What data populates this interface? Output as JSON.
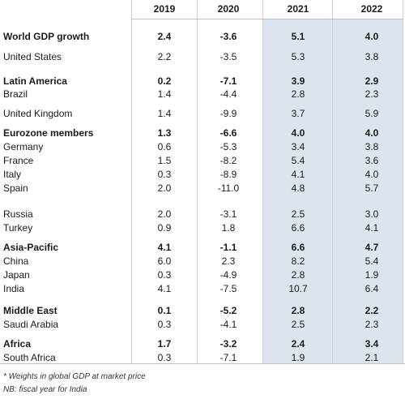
{
  "headers": [
    "2019",
    "2020",
    "2021",
    "2022"
  ],
  "rows": [
    {
      "label": "World GDP growth",
      "bold": true,
      "values": [
        "2.4",
        "-3.6",
        "5.1",
        "4.0"
      ]
    },
    {
      "label": "United States",
      "bold": false,
      "values": [
        "2.2",
        "-3.5",
        "5.3",
        "3.8"
      ]
    },
    {
      "label": "Latin America",
      "bold": true,
      "values": [
        "0.2",
        "-7.1",
        "3.9",
        "2.9"
      ]
    },
    {
      "label": "Brazil",
      "bold": false,
      "values": [
        "1.4",
        "-4.4",
        "2.8",
        "2.3"
      ]
    },
    {
      "label": "United Kingdom",
      "bold": false,
      "values": [
        "1.4",
        "-9.9",
        "3.7",
        "5.9"
      ]
    },
    {
      "label": "Eurozone members",
      "bold": true,
      "values": [
        "1.3",
        "-6.6",
        "4.0",
        "4.0"
      ]
    },
    {
      "label": "Germany",
      "bold": false,
      "values": [
        "0.6",
        "-5.3",
        "3.4",
        "3.8"
      ]
    },
    {
      "label": "France",
      "bold": false,
      "values": [
        "1.5",
        "-8.2",
        "5.4",
        "3.6"
      ]
    },
    {
      "label": "Italy",
      "bold": false,
      "values": [
        "0.3",
        "-8.9",
        "4.1",
        "4.0"
      ]
    },
    {
      "label": "Spain",
      "bold": false,
      "values": [
        "2.0",
        "-11.0",
        "4.8",
        "5.7"
      ]
    },
    {
      "label": "Russia",
      "bold": false,
      "values": [
        "2.0",
        "-3.1",
        "2.5",
        "3.0"
      ]
    },
    {
      "label": "Turkey",
      "bold": false,
      "values": [
        "0.9",
        "1.8",
        "6.6",
        "4.1"
      ]
    },
    {
      "label": "Asia-Pacific",
      "bold": true,
      "values": [
        "4.1",
        "-1.1",
        "6.6",
        "4.7"
      ]
    },
    {
      "label": "China",
      "bold": false,
      "values": [
        "6.0",
        "2.3",
        "8.2",
        "5.4"
      ]
    },
    {
      "label": "Japan",
      "bold": false,
      "values": [
        "0.3",
        "-4.9",
        "2.8",
        "1.9"
      ]
    },
    {
      "label": "India",
      "bold": false,
      "values": [
        "4.1",
        "-7.5",
        "10.7",
        "6.4"
      ]
    },
    {
      "label": "Middle East",
      "bold": true,
      "values": [
        "0.1",
        "-5.2",
        "2.8",
        "2.2"
      ]
    },
    {
      "label": "Saudi Arabia",
      "bold": false,
      "values": [
        "0.3",
        "-4.1",
        "2.5",
        "2.3"
      ]
    },
    {
      "label": "Africa",
      "bold": true,
      "values": [
        "1.7",
        "-3.2",
        "2.4",
        "3.4"
      ]
    },
    {
      "label": "South Africa",
      "bold": false,
      "values": [
        "0.3",
        "-7.1",
        "1.9",
        "2.1"
      ]
    }
  ],
  "notes": [
    "* Weights in global GDP at market price",
    "NB: fiscal year for India"
  ],
  "colors": {
    "forecast_shade": "#dce4ee"
  }
}
